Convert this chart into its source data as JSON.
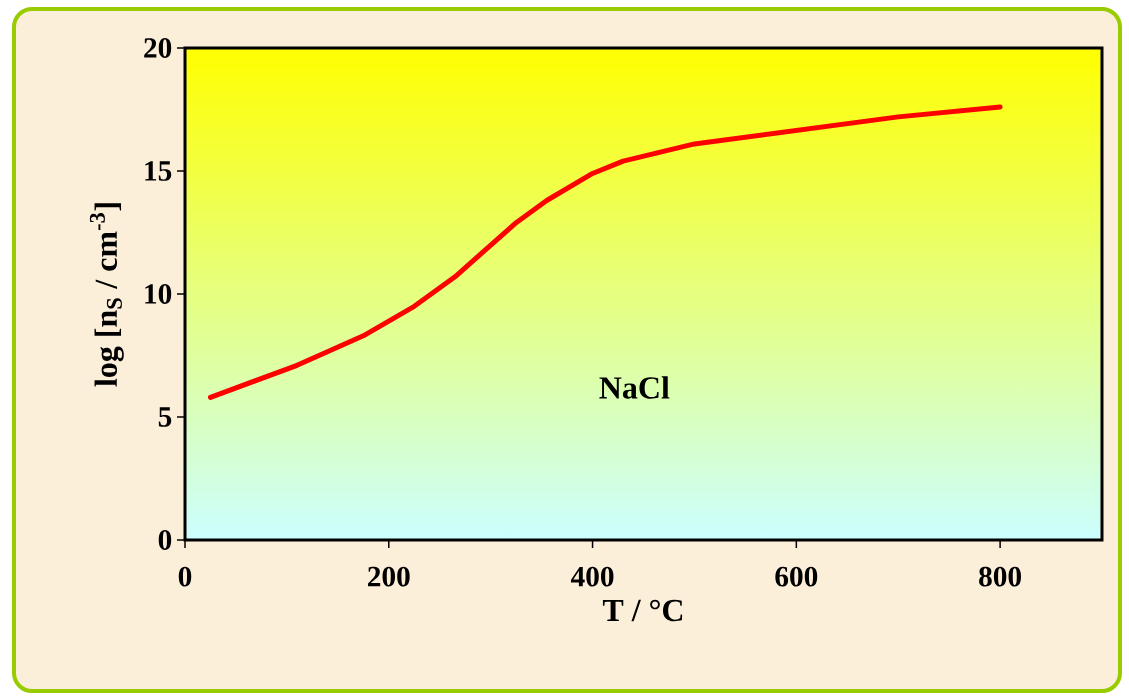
{
  "chart_data": {
    "type": "line",
    "xlabel": "T / °C",
    "ylabel": "log [n$_{S}$ / cm$^{-3}$]",
    "annotations": [
      "NaCl"
    ],
    "x": [
      25,
      110,
      175,
      225,
      265,
      325,
      355,
      400,
      430,
      500,
      700,
      800
    ],
    "series": [
      {
        "color": "#ff0000",
        "values": [
          5.8,
          7.1,
          8.3,
          9.5,
          10.7,
          12.9,
          13.8,
          14.9,
          15.4,
          16.1,
          17.2,
          17.6
        ]
      }
    ],
    "xlim": [
      0,
      900
    ],
    "ylim": [
      0,
      20
    ],
    "xticks": [
      0,
      200,
      400,
      600,
      800
    ],
    "yticks": [
      0,
      5,
      10,
      15,
      20
    ],
    "grid": false,
    "marker": "none",
    "line_style": "solid"
  }
}
